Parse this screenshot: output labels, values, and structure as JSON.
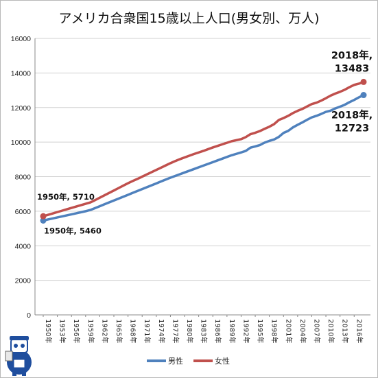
{
  "chart_data": {
    "type": "line",
    "title": "アメリカ合衆国15歳以上人口(男女別、万人)",
    "xlabel": "",
    "ylabel": "",
    "ylim": [
      0,
      16000
    ],
    "yticks": [
      0,
      2000,
      4000,
      6000,
      8000,
      10000,
      12000,
      14000,
      16000
    ],
    "x": [
      1950,
      1951,
      1952,
      1953,
      1954,
      1955,
      1956,
      1957,
      1958,
      1959,
      1960,
      1961,
      1962,
      1963,
      1964,
      1965,
      1966,
      1967,
      1968,
      1969,
      1970,
      1971,
      1972,
      1973,
      1974,
      1975,
      1976,
      1977,
      1978,
      1979,
      1980,
      1981,
      1982,
      1983,
      1984,
      1985,
      1986,
      1987,
      1988,
      1989,
      1990,
      1991,
      1992,
      1993,
      1994,
      1995,
      1996,
      1997,
      1998,
      1999,
      2000,
      2001,
      2002,
      2003,
      2004,
      2005,
      2006,
      2007,
      2008,
      2009,
      2010,
      2011,
      2012,
      2013,
      2014,
      2015,
      2016,
      2017,
      2018
    ],
    "xtick_labels": [
      "1950年",
      "1953年",
      "1956年",
      "1959年",
      "1962年",
      "1965年",
      "1968年",
      "1971年",
      "1974年",
      "1977年",
      "1980年",
      "1983年",
      "1986年",
      "1989年",
      "1992年",
      "1995年",
      "1998年",
      "2001年",
      "2004年",
      "2007年",
      "2010年",
      "2013年",
      "2016年"
    ],
    "series": [
      {
        "name": "男性",
        "color": "#4f81bd",
        "values": [
          5460,
          5520,
          5580,
          5640,
          5700,
          5760,
          5820,
          5880,
          5940,
          6000,
          6070,
          6180,
          6290,
          6400,
          6510,
          6620,
          6730,
          6840,
          6950,
          7060,
          7170,
          7280,
          7390,
          7500,
          7610,
          7720,
          7830,
          7940,
          8040,
          8140,
          8240,
          8340,
          8440,
          8540,
          8640,
          8740,
          8840,
          8940,
          9040,
          9140,
          9240,
          9320,
          9400,
          9490,
          9680,
          9750,
          9830,
          9970,
          10070,
          10150,
          10300,
          10530,
          10650,
          10850,
          11000,
          11140,
          11290,
          11430,
          11520,
          11630,
          11750,
          11820,
          11950,
          12050,
          12160,
          12310,
          12440,
          12590,
          12723
        ]
      },
      {
        "name": "女性",
        "color": "#c0504d",
        "values": [
          5710,
          5790,
          5870,
          5950,
          6030,
          6110,
          6190,
          6270,
          6350,
          6430,
          6510,
          6640,
          6780,
          6920,
          7060,
          7200,
          7340,
          7480,
          7620,
          7750,
          7870,
          8000,
          8130,
          8260,
          8390,
          8520,
          8650,
          8780,
          8900,
          9010,
          9110,
          9210,
          9310,
          9400,
          9490,
          9590,
          9690,
          9780,
          9870,
          9960,
          10050,
          10110,
          10170,
          10290,
          10460,
          10540,
          10640,
          10770,
          10890,
          11040,
          11280,
          11390,
          11520,
          11680,
          11810,
          11920,
          12060,
          12200,
          12280,
          12400,
          12540,
          12690,
          12810,
          12910,
          13030,
          13180,
          13310,
          13380,
          13483
        ]
      }
    ],
    "annotations": [
      {
        "series": "女性",
        "line1": "2018年,",
        "line2": "13483"
      },
      {
        "series": "男性",
        "line1": "2018年,",
        "line2": "12723"
      },
      {
        "series": "女性",
        "text": "1950年, 5710"
      },
      {
        "series": "男性",
        "text": "1950年, 5460"
      }
    ],
    "legend": {
      "position": "bottom",
      "entries": [
        "男性",
        "女性"
      ]
    },
    "grid": {
      "y": true,
      "x": false
    }
  },
  "mascot_icon": "robot-mascot-icon"
}
